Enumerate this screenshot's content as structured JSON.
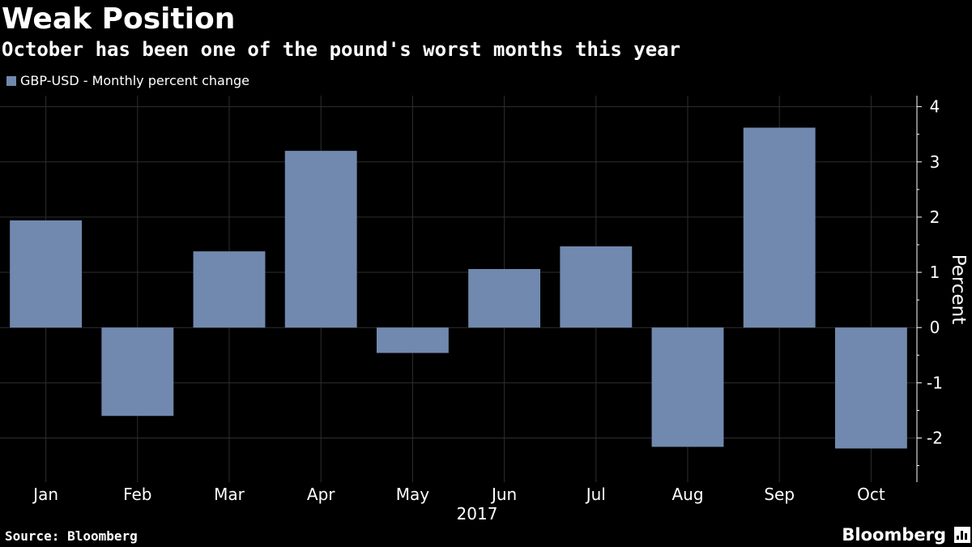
{
  "title": "Weak Position",
  "subtitle": "October has been one of the pound's worst months this year",
  "source": "Source: Bloomberg",
  "brand": "Bloomberg",
  "brand_icon": "bloomberg-bars-icon",
  "colors": {
    "background": "#000000",
    "bar": "#7189ae",
    "grid": "#2e2e2e",
    "text": "#ffffff"
  },
  "chart_data": {
    "type": "bar",
    "categories": [
      "Jan",
      "Feb",
      "Mar",
      "Apr",
      "May",
      "Jun",
      "Jul",
      "Aug",
      "Sep",
      "Oct"
    ],
    "series": [
      {
        "name": "GBP-USD - Monthly percent change",
        "values": [
          1.94,
          -1.6,
          1.38,
          3.2,
          -0.46,
          1.06,
          1.47,
          -2.16,
          3.62,
          -2.19
        ]
      }
    ],
    "xlabel": "2017",
    "ylabel": "Percent",
    "ylim": [
      -2.8,
      4.2
    ],
    "yticks": [
      -2,
      -1,
      0,
      1,
      2,
      3,
      4
    ],
    "y_axis_position": "right",
    "grid": true,
    "legend_position": "top-left"
  }
}
